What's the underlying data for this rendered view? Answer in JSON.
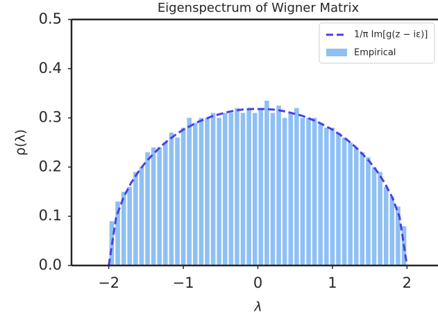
{
  "chart_data": {
    "type": "histogram",
    "title": "Eigenspectrum of Wigner Matrix",
    "xlabel": "λ",
    "ylabel": "ρ(λ)",
    "xlim": [
      -2.5,
      2.5
    ],
    "ylim": [
      0,
      0.5
    ],
    "xticks": [
      {
        "value": -2,
        "label": "−2"
      },
      {
        "value": -1,
        "label": "−1"
      },
      0,
      1,
      2
    ],
    "yticks": [
      {
        "value": 0,
        "label": "0.0"
      },
      0.1,
      0.2,
      0.3,
      0.4,
      0.5
    ],
    "legend": "upper right",
    "hist": {
      "name": "Empirical",
      "color": "#8fc0f4",
      "bins": [
        -2,
        -1.92,
        -1.84,
        -1.76,
        -1.68,
        -1.6,
        -1.52,
        -1.44,
        -1.36,
        -1.28,
        -1.2,
        -1.12,
        -1.04,
        -0.96,
        -0.88,
        -0.8,
        -0.72,
        -0.64,
        -0.56,
        -0.48,
        -0.4,
        -0.32,
        -0.24,
        -0.16,
        -0.08,
        0,
        0.08,
        0.16,
        0.24,
        0.32,
        0.4,
        0.48,
        0.56,
        0.64,
        0.72,
        0.8,
        0.88,
        0.96,
        1.04,
        1.12,
        1.2,
        1.28,
        1.36,
        1.44,
        1.52,
        1.6,
        1.68,
        1.76,
        1.84,
        1.92,
        2
      ],
      "counts": [
        0.09,
        0.13,
        0.15,
        0.16,
        0.19,
        0.2,
        0.23,
        0.24,
        0.24,
        0.25,
        0.27,
        0.26,
        0.28,
        0.3,
        0.29,
        0.3,
        0.3,
        0.31,
        0.3,
        0.31,
        0.31,
        0.32,
        0.31,
        0.32,
        0.31,
        0.32,
        0.335,
        0.31,
        0.325,
        0.3,
        0.31,
        0.32,
        0.3,
        0.3,
        0.3,
        0.29,
        0.28,
        0.28,
        0.27,
        0.26,
        0.25,
        0.24,
        0.23,
        0.22,
        0.2,
        0.19,
        0.16,
        0.14,
        0.12,
        0.08
      ]
    },
    "line": {
      "name": "1/π Im[g(z − iε)]",
      "color": "#4b3fe3",
      "dashed": true,
      "x": [
        -2,
        -1.9,
        -1.8,
        -1.7,
        -1.6,
        -1.5,
        -1.4,
        -1.3,
        -1.2,
        -1.1,
        -1,
        -0.9,
        -0.8,
        -0.7,
        -0.6,
        -0.5,
        -0.4,
        -0.3,
        -0.2,
        -0.1,
        0,
        0.1,
        0.2,
        0.3,
        0.4,
        0.5,
        0.6,
        0.7,
        0.8,
        0.9,
        1,
        1.1,
        1.2,
        1.3,
        1.4,
        1.5,
        1.6,
        1.7,
        1.8,
        1.9,
        2
      ],
      "values": [
        0,
        0.099,
        0.139,
        0.168,
        0.191,
        0.211,
        0.227,
        0.242,
        0.255,
        0.266,
        0.276,
        0.284,
        0.292,
        0.298,
        0.304,
        0.308,
        0.312,
        0.315,
        0.317,
        0.318,
        0.318,
        0.318,
        0.317,
        0.315,
        0.312,
        0.308,
        0.304,
        0.298,
        0.292,
        0.284,
        0.276,
        0.266,
        0.255,
        0.242,
        0.227,
        0.211,
        0.191,
        0.168,
        0.139,
        0.099,
        0
      ]
    }
  }
}
